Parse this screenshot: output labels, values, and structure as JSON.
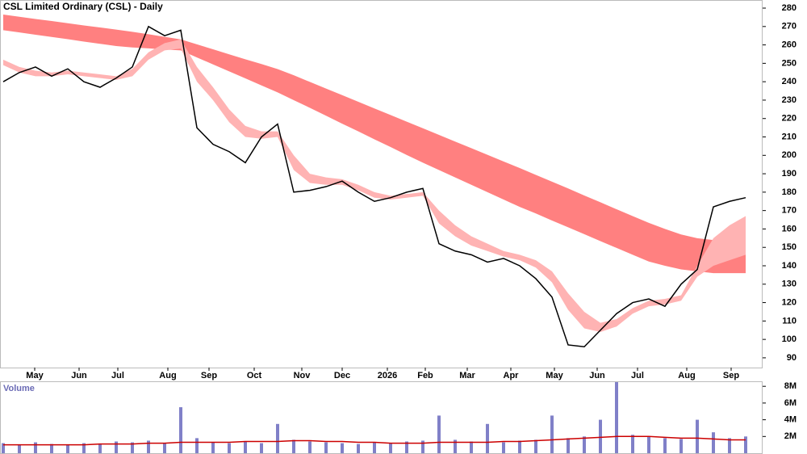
{
  "chart_data": [
    {
      "type": "stock",
      "title": "CSL Limited Ordinary (CSL) - Daily",
      "x": [
        0,
        1,
        2,
        3,
        4,
        5,
        6,
        7,
        8,
        9,
        10,
        11,
        12,
        13,
        14,
        15,
        16,
        17,
        18,
        19,
        20,
        21,
        22,
        23,
        24,
        25,
        26,
        27,
        28,
        29,
        30,
        31,
        32,
        33,
        34,
        35,
        36,
        37,
        38,
        39,
        40,
        41,
        42,
        43,
        44,
        45,
        46
      ],
      "xlim": [
        -0.2,
        47.05
      ],
      "xticks": [
        {
          "value": 1.95,
          "label": "May"
        },
        {
          "value": 4.7,
          "label": "Jun"
        },
        {
          "value": 7.1,
          "label": "Jul"
        },
        {
          "value": 10.2,
          "label": "Aug"
        },
        {
          "value": 12.75,
          "label": "Sep"
        },
        {
          "value": 15.55,
          "label": "Oct"
        },
        {
          "value": 18.5,
          "label": "Nov"
        },
        {
          "value": 21,
          "label": "Dec"
        },
        {
          "value": 23.8,
          "label": "2026"
        },
        {
          "value": 26.15,
          "label": "Feb"
        },
        {
          "value": 28.75,
          "label": "Mar"
        },
        {
          "value": 31.45,
          "label": "Apr"
        },
        {
          "value": 34.15,
          "label": "May"
        },
        {
          "value": 36.8,
          "label": "Jun"
        },
        {
          "value": 39.3,
          "label": "Jul"
        },
        {
          "value": 42.35,
          "label": "Aug"
        },
        {
          "value": 45.1,
          "label": "Sep"
        }
      ],
      "ylim": [
        84.7,
        284.4
      ],
      "yticks": [
        90,
        100,
        110,
        120,
        130,
        140,
        150,
        160,
        170,
        180,
        190,
        200,
        210,
        220,
        230,
        240,
        250,
        260,
        270,
        280
      ],
      "bands": [
        {
          "color": "#ff8080",
          "upper": [
            276.5,
            275.3,
            274.1,
            273.0,
            271.8,
            270.6,
            269.5,
            268.3,
            267.1,
            265.8,
            264.4,
            263.0,
            260.3,
            257.6,
            254.9,
            252.2,
            249.6,
            246.9,
            243.5,
            239.9,
            236.3,
            232.7,
            229.1,
            225.5,
            221.9,
            218.3,
            214.7,
            211.1,
            207.5,
            203.9,
            200.3,
            196.7,
            193.1,
            189.4,
            185.7,
            182.0,
            178.2,
            174.5,
            170.7,
            167.0,
            163.3,
            160,
            157,
            155,
            154,
            153,
            153
          ],
          "lower": [
            268,
            266.8,
            265.5,
            264.3,
            263.1,
            261.8,
            260.6,
            259.4,
            258.6,
            258.1,
            257.5,
            257.0,
            253.2,
            249.4,
            245.6,
            241.8,
            238,
            234.2,
            230,
            225.8,
            221.5,
            217.2,
            213,
            208.7,
            204.5,
            200.2,
            196,
            192,
            188,
            184,
            180,
            176,
            172,
            168.4,
            164.6,
            160.9,
            157.2,
            153.4,
            149.7,
            146,
            142.3,
            140,
            138,
            137,
            136,
            136,
            136
          ]
        },
        {
          "color": "#ffb3b3",
          "upper": [
            252,
            248,
            246,
            245,
            246,
            245,
            244,
            243,
            247,
            256,
            261,
            263,
            248,
            237,
            225,
            216,
            213,
            213,
            200,
            190,
            188,
            187,
            184,
            180,
            178,
            179,
            180,
            170,
            162,
            156,
            152,
            148,
            146,
            143,
            137,
            125,
            115,
            109,
            111,
            117,
            121,
            122,
            124,
            140,
            155,
            162,
            167
          ],
          "lower": [
            249,
            245,
            243,
            243,
            244,
            243,
            242,
            241,
            243,
            252,
            257,
            258,
            240,
            230,
            218,
            210,
            209,
            210,
            192,
            185,
            184,
            184,
            181,
            177,
            176,
            177,
            178,
            163,
            156,
            151,
            148,
            145,
            143,
            139,
            131,
            116,
            106,
            104,
            107,
            114,
            118,
            119,
            121,
            134,
            140,
            143,
            146
          ]
        }
      ],
      "series": [
        {
          "color": "#000000",
          "values": [
            240,
            245,
            248,
            243,
            247,
            240,
            237,
            242,
            248,
            270,
            265,
            268,
            215,
            206,
            202,
            196,
            210,
            217,
            180,
            181,
            183,
            186,
            180,
            175,
            177,
            180,
            182,
            152,
            148,
            146,
            142,
            144,
            140,
            133,
            123,
            97,
            96,
            105,
            114,
            120,
            122,
            118,
            130,
            138,
            172,
            175,
            177
          ]
        }
      ]
    },
    {
      "type": "bar",
      "title": "Volume",
      "x": [
        0,
        1,
        2,
        3,
        4,
        5,
        6,
        7,
        8,
        9,
        10,
        11,
        12,
        13,
        14,
        15,
        16,
        17,
        18,
        19,
        20,
        21,
        22,
        23,
        24,
        25,
        26,
        27,
        28,
        29,
        30,
        31,
        32,
        33,
        34,
        35,
        36,
        37,
        38,
        39,
        40,
        41,
        42,
        43,
        44,
        45,
        46
      ],
      "xlim": [
        -0.2,
        47.05
      ],
      "ylim": [
        0,
        8.6
      ],
      "yticks": [
        {
          "value": 2,
          "label": "2M"
        },
        {
          "value": 4,
          "label": "4M"
        },
        {
          "value": 6,
          "label": "6M"
        },
        {
          "value": 8,
          "label": "8M"
        }
      ],
      "series": [
        {
          "color": "#8080c8",
          "values": [
            1.2,
            1.0,
            1.3,
            1.1,
            1.0,
            1.2,
            1.1,
            1.4,
            1.3,
            1.5,
            1.2,
            5.5,
            1.8,
            1.3,
            1.2,
            1.4,
            1.2,
            3.5,
            1.6,
            1.4,
            1.3,
            1.2,
            1.1,
            1.3,
            1.2,
            1.4,
            1.5,
            4.5,
            1.6,
            1.4,
            3.5,
            1.3,
            1.5,
            1.6,
            4.5,
            1.8,
            2.0,
            4.0,
            8.5,
            2.2,
            2.0,
            1.8,
            1.7,
            4.0,
            2.5,
            1.8,
            2.0
          ]
        },
        {
          "color": "#cc0000",
          "values": [
            1.0,
            1.0,
            1.0,
            1.0,
            1.0,
            1.0,
            1.1,
            1.1,
            1.1,
            1.2,
            1.2,
            1.3,
            1.3,
            1.3,
            1.3,
            1.4,
            1.4,
            1.4,
            1.5,
            1.5,
            1.4,
            1.4,
            1.3,
            1.3,
            1.2,
            1.2,
            1.2,
            1.3,
            1.3,
            1.3,
            1.3,
            1.4,
            1.4,
            1.5,
            1.6,
            1.7,
            1.8,
            1.9,
            2.0,
            2.0,
            2.0,
            1.9,
            1.8,
            1.8,
            1.7,
            1.6,
            1.6
          ]
        }
      ]
    }
  ]
}
